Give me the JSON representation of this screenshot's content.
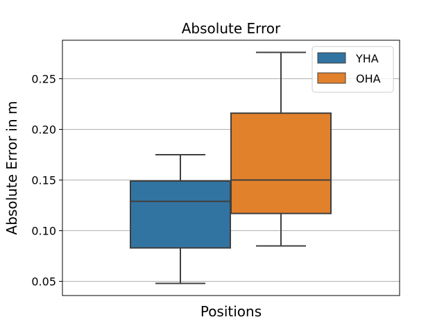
{
  "chart_data": {
    "type": "box",
    "title": "Absolute Error",
    "xlabel": "Positions",
    "ylabel": "Absolute Error in m",
    "ylim": [
      0.036,
      0.288
    ],
    "yticks": [
      0.05,
      0.1,
      0.15,
      0.2,
      0.25
    ],
    "ytick_labels": [
      "0.05",
      "0.10",
      "0.15",
      "0.20",
      "0.25"
    ],
    "grid": "horizontal",
    "legend_position": "top-right",
    "series": [
      {
        "name": "YHA",
        "color": "#3274a1",
        "whisker_low": 0.048,
        "q1": 0.083,
        "median": 0.129,
        "q3": 0.149,
        "whisker_high": 0.175
      },
      {
        "name": "OHA",
        "color": "#e1812c",
        "whisker_low": 0.085,
        "q1": 0.117,
        "median": 0.15,
        "q3": 0.216,
        "whisker_high": 0.276
      }
    ]
  }
}
